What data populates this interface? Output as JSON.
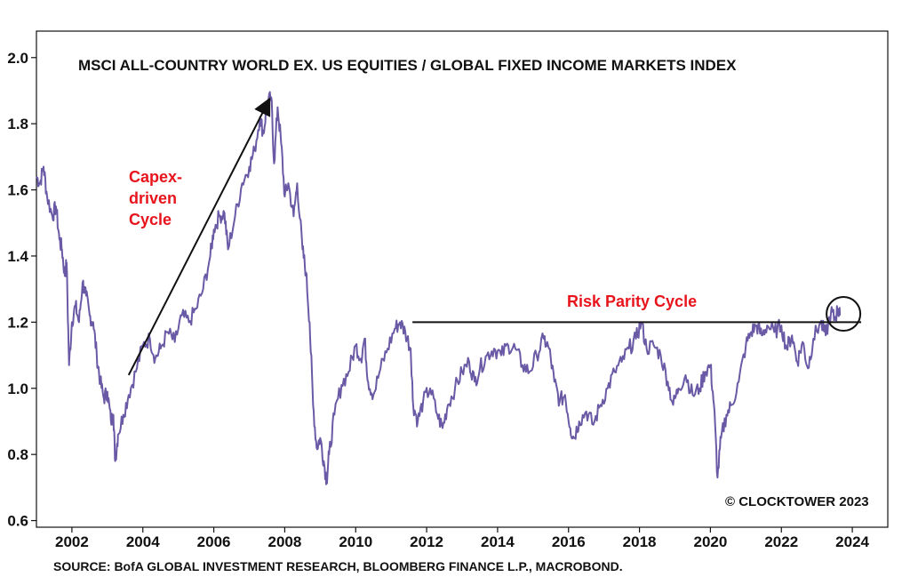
{
  "chart_data": {
    "type": "line",
    "title": "MSCI ALL-COUNTRY WORLD EX. US EQUITIES / GLOBAL FIXED INCOME MARKETS INDEX",
    "xlabel": "",
    "ylabel": "",
    "xlim": [
      2001.0,
      2025.0
    ],
    "ylim": [
      0.58,
      2.08
    ],
    "x_ticks": [
      2002,
      2004,
      2006,
      2008,
      2010,
      2012,
      2014,
      2016,
      2018,
      2020,
      2022,
      2024
    ],
    "y_ticks": [
      0.6,
      0.8,
      1.0,
      1.2,
      1.4,
      1.6,
      1.8,
      2.0
    ],
    "y_tick_labels": [
      "0.6",
      "0.8",
      "1.0",
      "1.2",
      "1.4",
      "1.6",
      "1.8",
      "2.0"
    ],
    "grid": false,
    "series": [
      {
        "name": "MSCI ACWI ex US / Global Fixed Income",
        "color": "#6a5aa6",
        "points": [
          [
            2001.0,
            1.64
          ],
          [
            2001.1,
            1.62
          ],
          [
            2001.2,
            1.67
          ],
          [
            2001.3,
            1.58
          ],
          [
            2001.45,
            1.52
          ],
          [
            2001.55,
            1.55
          ],
          [
            2001.65,
            1.45
          ],
          [
            2001.72,
            1.42
          ],
          [
            2001.8,
            1.34
          ],
          [
            2001.85,
            1.38
          ],
          [
            2001.92,
            1.07
          ],
          [
            2002.0,
            1.2
          ],
          [
            2002.1,
            1.25
          ],
          [
            2002.2,
            1.2
          ],
          [
            2002.3,
            1.32
          ],
          [
            2002.4,
            1.28
          ],
          [
            2002.5,
            1.22
          ],
          [
            2002.6,
            1.2
          ],
          [
            2002.7,
            1.1
          ],
          [
            2002.8,
            1.02
          ],
          [
            2002.9,
            0.97
          ],
          [
            2003.0,
            0.99
          ],
          [
            2003.1,
            0.9
          ],
          [
            2003.17,
            0.92
          ],
          [
            2003.22,
            0.78
          ],
          [
            2003.3,
            0.86
          ],
          [
            2003.45,
            0.92
          ],
          [
            2003.6,
            0.98
          ],
          [
            2003.8,
            1.05
          ],
          [
            2004.0,
            1.13
          ],
          [
            2004.2,
            1.15
          ],
          [
            2004.35,
            1.09
          ],
          [
            2004.5,
            1.12
          ],
          [
            2004.7,
            1.17
          ],
          [
            2004.9,
            1.14
          ],
          [
            2005.1,
            1.22
          ],
          [
            2005.3,
            1.2
          ],
          [
            2005.5,
            1.24
          ],
          [
            2005.7,
            1.3
          ],
          [
            2005.9,
            1.4
          ],
          [
            2006.0,
            1.48
          ],
          [
            2006.15,
            1.52
          ],
          [
            2006.3,
            1.53
          ],
          [
            2006.4,
            1.42
          ],
          [
            2006.6,
            1.52
          ],
          [
            2006.8,
            1.62
          ],
          [
            2007.0,
            1.67
          ],
          [
            2007.15,
            1.72
          ],
          [
            2007.3,
            1.82
          ],
          [
            2007.4,
            1.77
          ],
          [
            2007.5,
            1.86
          ],
          [
            2007.62,
            1.88
          ],
          [
            2007.7,
            1.68
          ],
          [
            2007.8,
            1.85
          ],
          [
            2007.9,
            1.74
          ],
          [
            2008.0,
            1.58
          ],
          [
            2008.1,
            1.62
          ],
          [
            2008.25,
            1.52
          ],
          [
            2008.35,
            1.62
          ],
          [
            2008.5,
            1.42
          ],
          [
            2008.6,
            1.35
          ],
          [
            2008.7,
            1.2
          ],
          [
            2008.8,
            0.95
          ],
          [
            2008.9,
            0.82
          ],
          [
            2009.0,
            0.85
          ],
          [
            2009.1,
            0.78
          ],
          [
            2009.18,
            0.72
          ],
          [
            2009.25,
            0.8
          ],
          [
            2009.4,
            0.92
          ],
          [
            2009.6,
            1.01
          ],
          [
            2009.8,
            1.05
          ],
          [
            2010.0,
            1.13
          ],
          [
            2010.15,
            1.09
          ],
          [
            2010.25,
            1.15
          ],
          [
            2010.35,
            1.02
          ],
          [
            2010.5,
            0.98
          ],
          [
            2010.7,
            1.06
          ],
          [
            2010.9,
            1.12
          ],
          [
            2011.1,
            1.18
          ],
          [
            2011.25,
            1.2
          ],
          [
            2011.4,
            1.17
          ],
          [
            2011.55,
            1.12
          ],
          [
            2011.62,
            0.95
          ],
          [
            2011.75,
            0.9
          ],
          [
            2011.9,
            0.96
          ],
          [
            2012.1,
            1.0
          ],
          [
            2012.3,
            0.92
          ],
          [
            2012.45,
            0.88
          ],
          [
            2012.6,
            0.95
          ],
          [
            2012.8,
            1.0
          ],
          [
            2013.0,
            1.05
          ],
          [
            2013.2,
            1.08
          ],
          [
            2013.35,
            1.02
          ],
          [
            2013.5,
            1.06
          ],
          [
            2013.7,
            1.1
          ],
          [
            2013.9,
            1.12
          ],
          [
            2014.1,
            1.1
          ],
          [
            2014.3,
            1.13
          ],
          [
            2014.5,
            1.12
          ],
          [
            2014.7,
            1.07
          ],
          [
            2014.9,
            1.05
          ],
          [
            2015.1,
            1.1
          ],
          [
            2015.3,
            1.15
          ],
          [
            2015.45,
            1.12
          ],
          [
            2015.6,
            1.02
          ],
          [
            2015.75,
            0.96
          ],
          [
            2015.9,
            0.98
          ],
          [
            2016.05,
            0.88
          ],
          [
            2016.15,
            0.85
          ],
          [
            2016.3,
            0.9
          ],
          [
            2016.5,
            0.93
          ],
          [
            2016.7,
            0.89
          ],
          [
            2016.9,
            0.95
          ],
          [
            2017.1,
            1.0
          ],
          [
            2017.3,
            1.05
          ],
          [
            2017.5,
            1.08
          ],
          [
            2017.7,
            1.12
          ],
          [
            2017.9,
            1.15
          ],
          [
            2018.05,
            1.2
          ],
          [
            2018.2,
            1.12
          ],
          [
            2018.4,
            1.13
          ],
          [
            2018.6,
            1.1
          ],
          [
            2018.8,
            1.02
          ],
          [
            2018.95,
            0.95
          ],
          [
            2019.1,
            1.0
          ],
          [
            2019.3,
            1.04
          ],
          [
            2019.5,
            0.98
          ],
          [
            2019.7,
            1.0
          ],
          [
            2019.85,
            1.05
          ],
          [
            2020.0,
            1.07
          ],
          [
            2020.1,
            0.95
          ],
          [
            2020.2,
            0.73
          ],
          [
            2020.3,
            0.85
          ],
          [
            2020.45,
            0.92
          ],
          [
            2020.6,
            0.95
          ],
          [
            2020.8,
            1.02
          ],
          [
            2021.0,
            1.13
          ],
          [
            2021.15,
            1.17
          ],
          [
            2021.3,
            1.19
          ],
          [
            2021.45,
            1.16
          ],
          [
            2021.6,
            1.19
          ],
          [
            2021.8,
            1.17
          ],
          [
            2022.0,
            1.19
          ],
          [
            2022.15,
            1.12
          ],
          [
            2022.3,
            1.16
          ],
          [
            2022.45,
            1.08
          ],
          [
            2022.6,
            1.14
          ],
          [
            2022.75,
            1.06
          ],
          [
            2022.9,
            1.15
          ],
          [
            2023.1,
            1.2
          ],
          [
            2023.25,
            1.16
          ],
          [
            2023.4,
            1.23
          ],
          [
            2023.5,
            1.21
          ],
          [
            2023.6,
            1.24
          ],
          [
            2023.65,
            1.22
          ]
        ]
      }
    ],
    "reference_line": {
      "label": "Risk Parity Cycle",
      "y": 1.2,
      "x_start": 2011.6,
      "x_end": 2024.25
    },
    "annotations": {
      "capex_lines": [
        "Capex-",
        "driven",
        "Cycle"
      ],
      "risk_parity": "Risk Parity Cycle",
      "arrow_from": [
        2003.6,
        1.04
      ],
      "arrow_to": [
        2007.55,
        1.87
      ],
      "circle_center": [
        2023.75,
        1.225
      ]
    },
    "copyright": "© CLOCKTOWER 2023",
    "source": "SOURCE: BofA GLOBAL INVESTMENT RESEARCH, BLOOMBERG FINANCE L.P., MACROBOND."
  },
  "colors": {
    "line": "#6a5aa6",
    "annotation_red": "#e8141c",
    "axis": "#111111"
  }
}
